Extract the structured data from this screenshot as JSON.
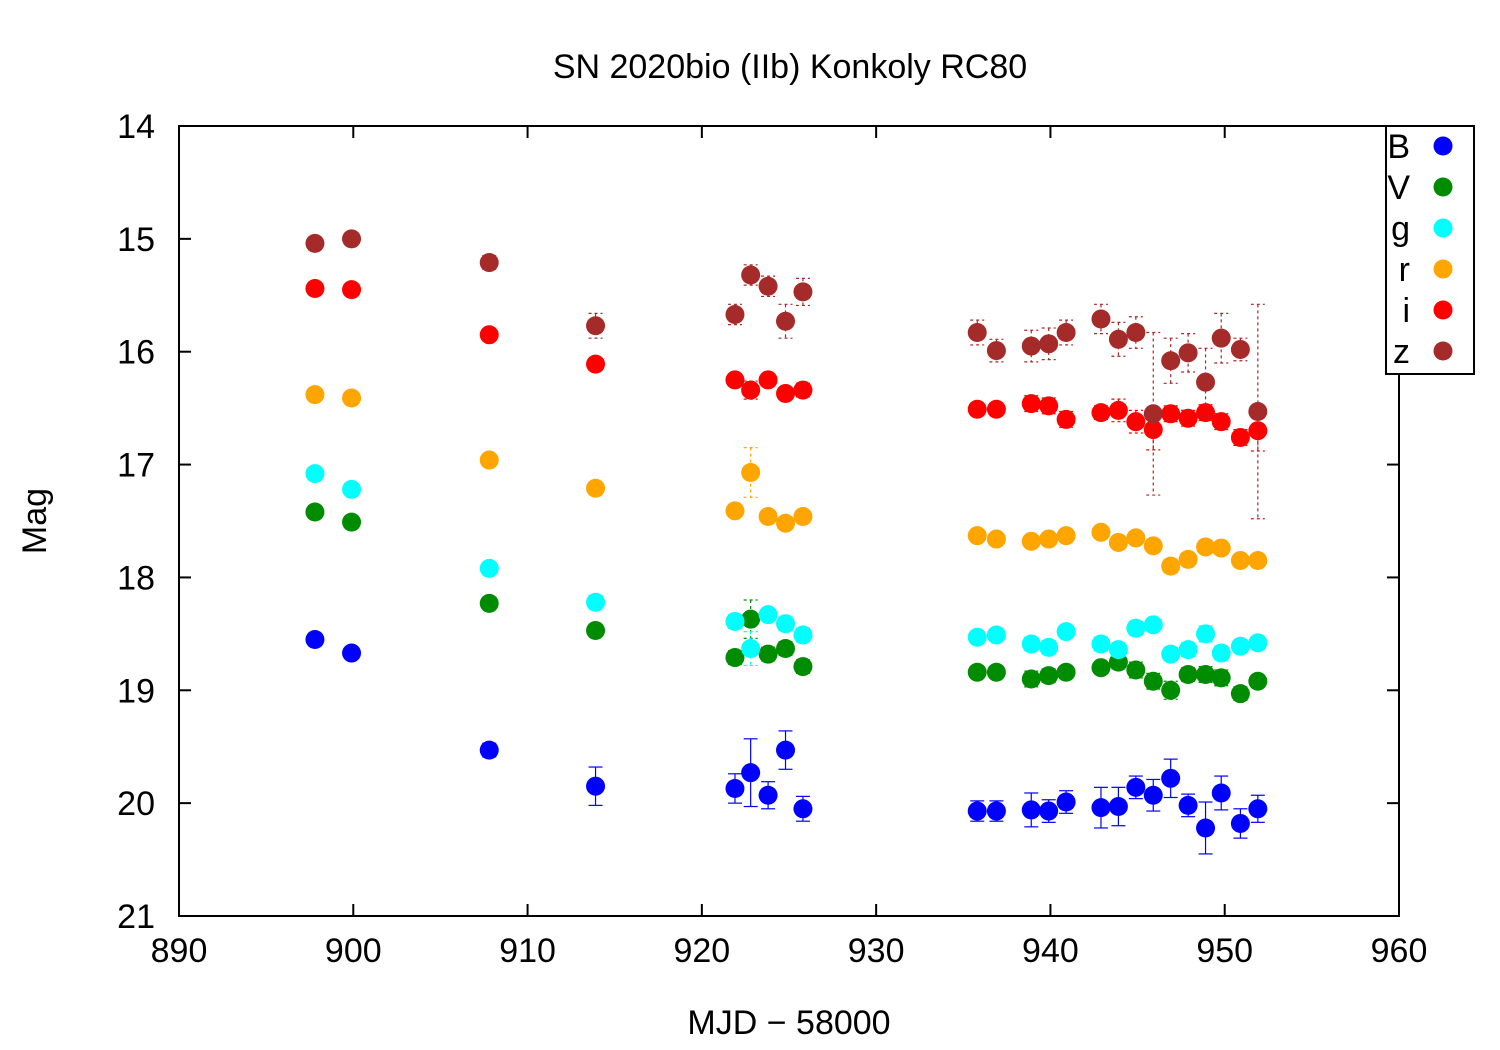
{
  "chart_data": {
    "type": "scatter",
    "title": "SN 2020bio (IIb) Konkoly RC80",
    "xlabel": "MJD − 58000",
    "ylabel": "Mag",
    "xlim": [
      890,
      960
    ],
    "ylim": [
      21,
      14
    ],
    "y_inverted": true,
    "x_ticks": [
      890,
      900,
      910,
      920,
      930,
      940,
      950,
      960
    ],
    "y_ticks": [
      14,
      15,
      16,
      17,
      18,
      19,
      20,
      21
    ],
    "grid": false,
    "legend_position": "top-right",
    "series": [
      {
        "name": "B",
        "color": "#0000ff",
        "x": [
          897.8,
          899.9,
          907.8,
          913.9,
          921.9,
          922.8,
          923.8,
          924.8,
          925.8,
          935.8,
          936.9,
          938.9,
          939.9,
          940.9,
          942.9,
          943.9,
          944.9,
          945.9,
          946.9,
          947.9,
          948.9,
          949.8,
          950.9,
          951.9
        ],
        "y": [
          18.55,
          18.67,
          19.53,
          19.85,
          19.87,
          19.73,
          19.93,
          19.53,
          20.05,
          20.07,
          20.07,
          20.06,
          20.07,
          19.99,
          20.04,
          20.03,
          19.86,
          19.93,
          19.78,
          20.02,
          20.22,
          19.91,
          20.18,
          20.05
        ],
        "err": [
          0.0,
          0.0,
          0.06,
          0.17,
          0.13,
          0.3,
          0.12,
          0.17,
          0.11,
          0.09,
          0.09,
          0.15,
          0.1,
          0.1,
          0.18,
          0.17,
          0.1,
          0.14,
          0.17,
          0.1,
          0.23,
          0.15,
          0.13,
          0.12
        ]
      },
      {
        "name": "V",
        "color": "#008c00",
        "x": [
          897.8,
          899.9,
          907.8,
          913.9,
          921.9,
          922.8,
          923.8,
          924.8,
          925.8,
          935.8,
          936.9,
          938.9,
          939.9,
          940.9,
          942.9,
          943.9,
          944.9,
          945.9,
          946.9,
          947.9,
          948.9,
          949.8,
          950.9,
          951.9
        ],
        "y": [
          17.42,
          17.51,
          18.23,
          18.47,
          18.71,
          18.37,
          18.68,
          18.63,
          18.79,
          18.84,
          18.84,
          18.9,
          18.87,
          18.84,
          18.8,
          18.75,
          18.82,
          18.92,
          19.0,
          18.86,
          18.86,
          18.89,
          19.03,
          18.92
        ],
        "err": [
          0.0,
          0.0,
          0.0,
          0.05,
          0.06,
          0.17,
          0.06,
          0.06,
          0.06,
          0.05,
          0.05,
          0.07,
          0.06,
          0.05,
          0.05,
          0.06,
          0.07,
          0.07,
          0.08,
          0.06,
          0.07,
          0.07,
          0.06,
          0.05
        ]
      },
      {
        "name": "g",
        "color": "#00ffff",
        "x": [
          897.8,
          899.9,
          907.8,
          913.9,
          921.9,
          922.8,
          923.8,
          924.8,
          925.8,
          935.8,
          936.9,
          938.9,
          939.9,
          940.9,
          942.9,
          943.9,
          944.9,
          945.9,
          946.9,
          947.9,
          948.9,
          949.8,
          950.9,
          951.9
        ],
        "y": [
          17.08,
          17.22,
          17.92,
          18.22,
          18.39,
          18.63,
          18.33,
          18.41,
          18.51,
          18.53,
          18.51,
          18.59,
          18.62,
          18.48,
          18.59,
          18.64,
          18.45,
          18.42,
          18.68,
          18.64,
          18.5,
          18.67,
          18.61,
          18.58
        ],
        "err": [
          0.0,
          0.0,
          0.0,
          0.06,
          0.06,
          0.15,
          0.05,
          0.06,
          0.06,
          0.05,
          0.05,
          0.06,
          0.06,
          0.05,
          0.06,
          0.06,
          0.06,
          0.05,
          0.06,
          0.06,
          0.07,
          0.06,
          0.05,
          0.05
        ]
      },
      {
        "name": "r",
        "color": "#ffa500",
        "x": [
          897.8,
          899.9,
          907.8,
          913.9,
          921.9,
          922.8,
          923.8,
          924.8,
          925.8,
          935.8,
          936.9,
          938.9,
          939.9,
          940.9,
          942.9,
          943.9,
          944.9,
          945.9,
          946.9,
          947.9,
          948.9,
          949.8,
          950.9,
          951.9
        ],
        "y": [
          16.38,
          16.41,
          16.96,
          17.21,
          17.41,
          17.07,
          17.46,
          17.52,
          17.46,
          17.63,
          17.66,
          17.68,
          17.66,
          17.63,
          17.6,
          17.69,
          17.65,
          17.72,
          17.9,
          17.84,
          17.73,
          17.74,
          17.85,
          17.85
        ],
        "err": [
          0.0,
          0.0,
          0.0,
          0.0,
          0.04,
          0.22,
          0.05,
          0.05,
          0.05,
          0.04,
          0.04,
          0.04,
          0.04,
          0.04,
          0.04,
          0.05,
          0.05,
          0.05,
          0.06,
          0.05,
          0.05,
          0.05,
          0.04,
          0.04
        ]
      },
      {
        "name": "i",
        "color": "#ff0000",
        "x": [
          897.8,
          899.9,
          907.8,
          913.9,
          921.9,
          922.8,
          923.8,
          924.8,
          925.8,
          935.8,
          936.9,
          938.9,
          939.9,
          940.9,
          942.9,
          943.9,
          944.9,
          945.9,
          946.9,
          947.9,
          948.9,
          949.8,
          950.9,
          951.9
        ],
        "y": [
          15.44,
          15.45,
          15.85,
          16.11,
          16.25,
          16.34,
          16.25,
          16.37,
          16.34,
          16.51,
          16.51,
          16.46,
          16.48,
          16.6,
          16.54,
          16.52,
          16.62,
          16.69,
          16.55,
          16.59,
          16.54,
          16.62,
          16.76,
          16.7
        ],
        "err": [
          0.0,
          0.0,
          0.0,
          0.0,
          0.04,
          0.08,
          0.05,
          0.05,
          0.06,
          0.05,
          0.05,
          0.07,
          0.07,
          0.07,
          0.06,
          0.1,
          0.1,
          0.18,
          0.07,
          0.07,
          0.07,
          0.07,
          0.07,
          0.18
        ]
      },
      {
        "name": "z",
        "color": "#a52a2a",
        "x": [
          897.8,
          899.9,
          907.8,
          913.9,
          921.9,
          922.8,
          923.8,
          924.8,
          925.8,
          935.8,
          936.9,
          938.9,
          939.9,
          940.9,
          942.9,
          943.9,
          944.9,
          945.9,
          946.9,
          947.9,
          948.9,
          949.8,
          950.9,
          951.9
        ],
        "y": [
          15.04,
          15.0,
          15.21,
          15.77,
          15.67,
          15.32,
          15.42,
          15.73,
          15.47,
          15.83,
          15.99,
          15.95,
          15.93,
          15.83,
          15.71,
          15.89,
          15.83,
          16.55,
          16.08,
          16.01,
          16.27,
          15.88,
          15.98,
          16.53
        ],
        "err": [
          0.0,
          0.0,
          0.06,
          0.11,
          0.09,
          0.09,
          0.09,
          0.15,
          0.12,
          0.11,
          0.1,
          0.14,
          0.14,
          0.11,
          0.13,
          0.15,
          0.14,
          0.72,
          0.2,
          0.17,
          0.3,
          0.22,
          0.1,
          0.95
        ]
      }
    ]
  }
}
